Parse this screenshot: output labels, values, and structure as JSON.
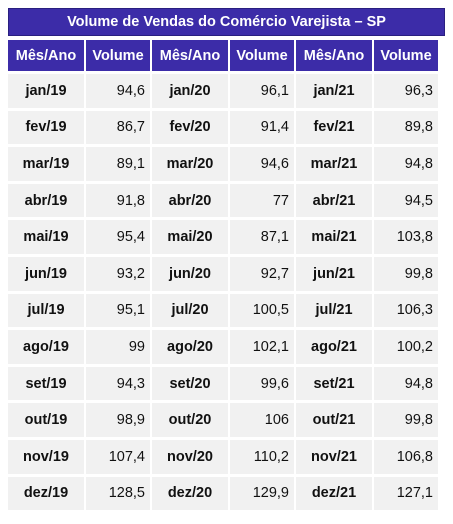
{
  "title": "Volume de Vendas do Comércio Varejista – SP",
  "header": {
    "month_label": "Mês/Ano",
    "value_label": "Volume"
  },
  "chart_data": {
    "type": "table",
    "title": "Volume de Vendas do Comércio Varejista – SP",
    "columns": [
      "Mês/Ano",
      "Volume"
    ],
    "blocks": [
      {
        "months": [
          "jan/19",
          "fev/19",
          "mar/19",
          "abr/19",
          "mai/19",
          "jun/19",
          "jul/19",
          "ago/19",
          "set/19",
          "out/19",
          "nov/19",
          "dez/19"
        ],
        "values": [
          "94,6",
          "86,7",
          "89,1",
          "91,8",
          "95,4",
          "93,2",
          "95,1",
          "99",
          "94,3",
          "98,9",
          "107,4",
          "128,5"
        ]
      },
      {
        "months": [
          "jan/20",
          "fev/20",
          "mar/20",
          "abr/20",
          "mai/20",
          "jun/20",
          "jul/20",
          "ago/20",
          "set/20",
          "out/20",
          "nov/20",
          "dez/20"
        ],
        "values": [
          "96,1",
          "91,4",
          "94,6",
          "77",
          "87,1",
          "92,7",
          "100,5",
          "102,1",
          "99,6",
          "106",
          "110,2",
          "129,9"
        ]
      },
      {
        "months": [
          "jan/21",
          "fev/21",
          "mar/21",
          "abr/21",
          "mai/21",
          "jun/21",
          "jul/21",
          "ago/21",
          "set/21",
          "out/21",
          "nov/21",
          "dez/21"
        ],
        "values": [
          "96,3",
          "89,8",
          "94,8",
          "94,5",
          "103,8",
          "99,8",
          "106,3",
          "100,2",
          "94,8",
          "99,8",
          "106,8",
          "127,1"
        ]
      }
    ]
  }
}
